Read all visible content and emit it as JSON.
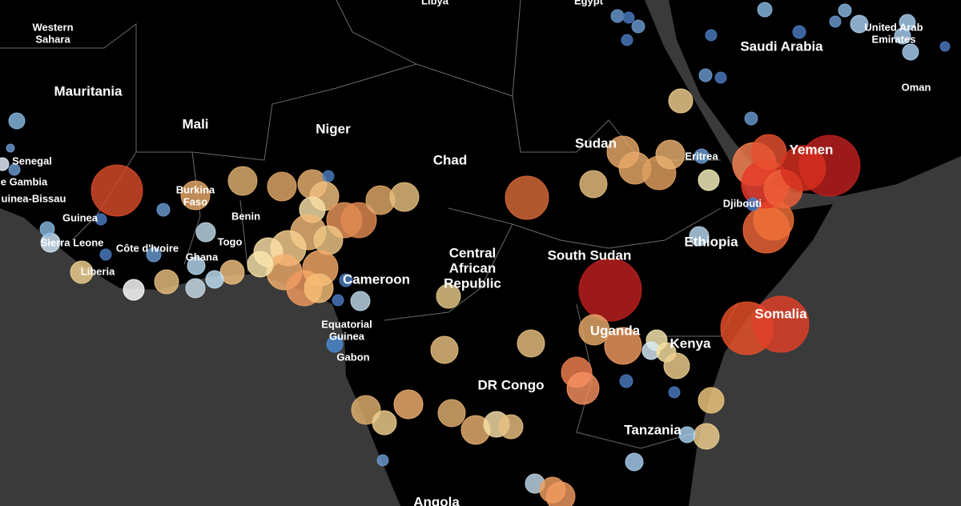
{
  "map": {
    "labels": [
      [
        "Libya"
      ],
      [
        "Egypt"
      ],
      [
        "Western",
        "Sahara"
      ],
      [
        "Mauritania"
      ],
      [
        "Mali"
      ],
      [
        "Niger"
      ],
      [
        "Chad"
      ],
      [
        "Sudan"
      ],
      [
        "Eritrea"
      ],
      [
        "Saudi Arabia"
      ],
      [
        "Yemen"
      ],
      [
        "Oman"
      ],
      [
        "United Arab",
        "Emirates"
      ],
      [
        "Senegal"
      ],
      [
        "e Gambia"
      ],
      [
        "uinea-Bissau"
      ],
      [
        "Burkina",
        "Faso"
      ],
      [
        "Guinea"
      ],
      [
        "Benin"
      ],
      [
        "Sierra Leone"
      ],
      [
        "Côte d'Ivoire"
      ],
      [
        "Togo"
      ],
      [
        "Ghana"
      ],
      [
        "Liberia"
      ],
      [
        "Cameroon"
      ],
      [
        "Equatorial",
        "Guinea"
      ],
      [
        "Gabon"
      ],
      [
        "Central",
        "African",
        "Republic"
      ],
      [
        "South Sudan"
      ],
      [
        "Ethiopia"
      ],
      [
        "Djibouti"
      ],
      [
        "Somalia"
      ],
      [
        "Uganda"
      ],
      [
        "Kenya"
      ],
      [
        "DR Congo"
      ],
      [
        "Tanzania"
      ],
      [
        "Angola"
      ]
    ]
  }
}
